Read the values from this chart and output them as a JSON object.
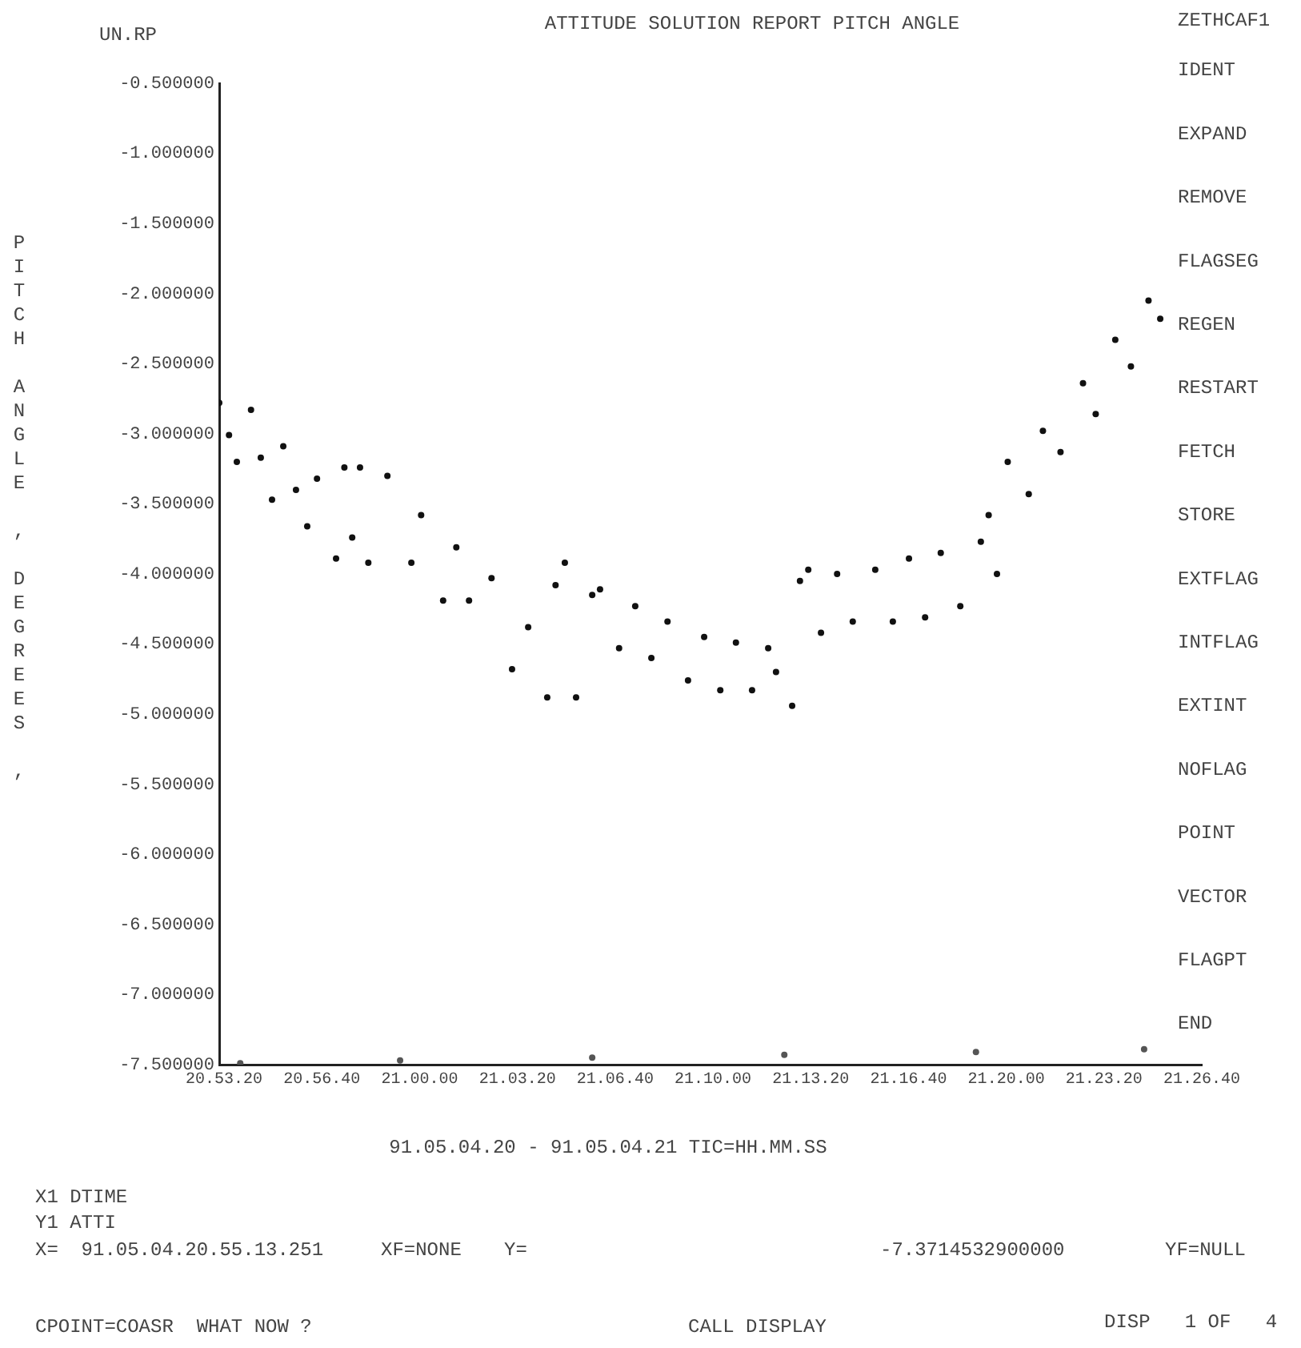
{
  "chart_data": {
    "type": "scatter",
    "title": "ATTITUDE SOLUTION REPORT PITCH ANGLE",
    "ylabel": "PITCH ANGLE , DEGREES ,",
    "xlabel": "91.05.04.20 - 91.05.04.21 TIC=HH.MM.SS",
    "annotations": [
      "UN.RP",
      "ZETHCAF1",
      "IDENT",
      "EXPAND",
      "REMOVE",
      "FLAGSEG",
      "REGEN",
      "RESTART",
      "FETCH",
      "STORE",
      "EXTFLAG",
      "INTFLAG",
      "EXTINT",
      "NOFLAG",
      "POINT",
      "VECTOR",
      "FLAGPT",
      "END",
      "X1 DTIME",
      "Y1 ATTI",
      "X=  91.05.04.20.55.13.251",
      "XF=NONE",
      "Y=",
      "-7.3714532900000",
      "YF=NULL",
      "CPOINT=COASR  WHAT NOW ?",
      "CALL DISPLAY",
      "DISP   1 OF   4"
    ],
    "series": [
      {
        "color": "#111111",
        "x": [
          "--05-04T20:53:10",
          "--05-04T20:53:30",
          "--05-04T20:53:46",
          "--05-04T20:54:15",
          "--05-04T20:54:35",
          "--05-04T20:54:58",
          "--05-04T20:55:21",
          "--05-04T20:55:47",
          "--05-04T20:56:10",
          "--05-04T20:56:30",
          "--05-04T20:57:09",
          "--05-04T20:57:26",
          "--05-04T20:57:42",
          "--05-04T20:57:58",
          "--05-04T20:58:15",
          "--05-04T20:58:54",
          "--05-04T20:59:43",
          "--05-04T21:00:03",
          "--05-04T21:00:48",
          "--05-04T21:01:15",
          "--05-04T21:01:41",
          "--05-04T21:02:27",
          "--05-04T21:03:09",
          "--05-04T21:03:42",
          "--05-04T21:04:21",
          "--05-04T21:04:38",
          "--05-04T21:04:57",
          "--05-04T21:05:20",
          "--05-04T21:05:53",
          "--05-04T21:06:09",
          "--05-04T21:06:48",
          "--05-04T21:07:21",
          "--05-04T21:07:54",
          "--05-04T21:08:27",
          "--05-04T21:09:09",
          "--05-04T21:09:42",
          "--05-04T21:10:15",
          "--05-04T21:10:47",
          "--05-04T21:11:20",
          "--05-04T21:11:53",
          "--05-04T21:12:09",
          "--05-04T21:12:42",
          "--05-04T21:12:58",
          "--05-04T21:13:15",
          "--05-04T21:13:41",
          "--05-04T21:14:14",
          "--05-04T21:14:46",
          "--05-04T21:15:32",
          "--05-04T21:16:08",
          "--05-04T21:16:41",
          "--05-04T21:17:14",
          "--05-04T21:17:46",
          "--05-04T21:18:26",
          "--05-04T21:19:08",
          "--05-04T21:19:24",
          "--05-04T21:19:41",
          "--05-04T21:20:03",
          "--05-04T21:20:46",
          "--05-04T21:21:15",
          "--05-04T21:21:51",
          "--05-04T21:22:37",
          "--05-04T21:23:03",
          "--05-04T21:23:43",
          "--05-04T21:24:15",
          "--05-04T21:24:51",
          "--05-04T21:25:15"
        ],
        "values": [
          -2.78,
          -3.01,
          -3.2,
          -2.83,
          -3.17,
          -3.47,
          -3.09,
          -3.4,
          -3.66,
          -3.32,
          -3.89,
          -3.24,
          -3.74,
          -3.24,
          -3.92,
          -3.3,
          -3.92,
          -3.58,
          -4.19,
          -3.81,
          -4.19,
          -4.03,
          -4.68,
          -4.38,
          -4.88,
          -4.08,
          -3.92,
          -4.88,
          -4.15,
          -4.11,
          -4.53,
          -4.23,
          -4.6,
          -4.34,
          -4.76,
          -4.45,
          -4.83,
          -4.49,
          -4.83,
          -4.53,
          -4.7,
          -4.94,
          -4.05,
          -3.97,
          -4.42,
          -4.0,
          -4.34,
          -3.97,
          -4.34,
          -3.89,
          -4.31,
          -3.85,
          -4.23,
          -3.77,
          -3.58,
          -4.0,
          -3.2,
          -3.43,
          -2.98,
          -3.13,
          -2.64,
          -2.86,
          -2.33,
          -2.52,
          -2.05,
          -2.18
        ]
      },
      {
        "color": "#555555",
        "x": [
          "--05-04T20:53:53",
          "--05-04T20:59:20",
          "--05-04T21:05:53",
          "--05-04T21:12:26",
          "--05-04T21:18:58",
          "--05-04T21:24:42"
        ],
        "values": [
          -7.49,
          -7.47,
          -7.45,
          -7.43,
          -7.41,
          -7.39
        ]
      }
    ],
    "xlim": [
      "--05-04T20:53:10",
      "--05-04T21:26:40"
    ],
    "ylim": [
      -7.5,
      -0.5
    ],
    "xticks": [
      {
        "value": "--05-04T20:53:20",
        "label": "20.53.20"
      },
      {
        "value": "--05-04T20:56:40",
        "label": "20.56.40"
      },
      {
        "value": "--05-04T21:00:00",
        "label": "21.00.00"
      },
      {
        "value": "--05-04T21:03:20",
        "label": "21.03.20"
      },
      {
        "value": "--05-04T21:06:40",
        "label": "21.06.40"
      },
      {
        "value": "--05-04T21:10:00",
        "label": "21.10.00"
      },
      {
        "value": "--05-04T21:13:20",
        "label": "21.13.20"
      },
      {
        "value": "--05-04T21:16:40",
        "label": "21.16.40"
      },
      {
        "value": "--05-04T21:20:00",
        "label": "21.20.00"
      },
      {
        "value": "--05-04T21:23:20",
        "label": "21.23.20"
      },
      {
        "value": "--05-04T21:26:40",
        "label": "21.26.40"
      }
    ],
    "yticks": [
      {
        "value": -0.5,
        "label": "-0.500000"
      },
      {
        "value": -1,
        "label": "-1.000000"
      },
      {
        "value": -1.5,
        "label": "-1.500000"
      },
      {
        "value": -2,
        "label": "-2.000000"
      },
      {
        "value": -2.5,
        "label": "-2.500000"
      },
      {
        "value": -3,
        "label": "-3.000000"
      },
      {
        "value": -3.5,
        "label": "-3.500000"
      },
      {
        "value": -4,
        "label": "-4.000000"
      },
      {
        "value": -4.5,
        "label": "-4.500000"
      },
      {
        "value": -5,
        "label": "-5.000000"
      },
      {
        "value": -5.5,
        "label": "-5.500000"
      },
      {
        "value": -6,
        "label": "-6.000000"
      },
      {
        "value": -6.5,
        "label": "-6.500000"
      },
      {
        "value": -7,
        "label": "-7.000000"
      },
      {
        "value": -7.5,
        "label": "-7.500000"
      }
    ],
    "grid": false,
    "legend": false,
    "marker": "circle"
  }
}
